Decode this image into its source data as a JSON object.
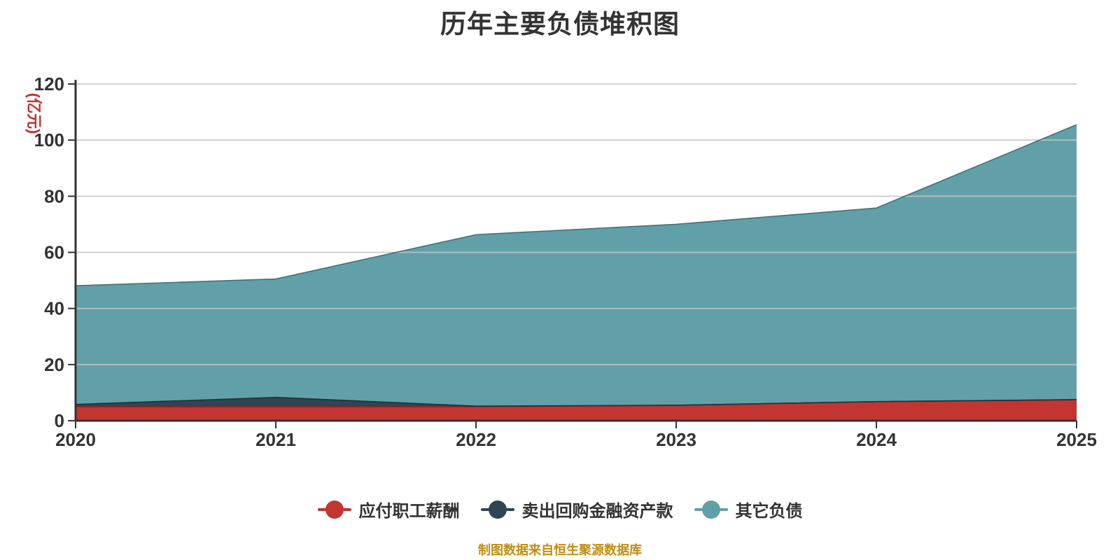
{
  "title": "历年主要负债堆积图",
  "y_axis": {
    "name": "(亿元)",
    "name_color": "#c23531",
    "tick_labels": [
      "0",
      "20",
      "40",
      "60",
      "80",
      "100",
      "120"
    ],
    "min": 0,
    "max": 120,
    "interval": 20
  },
  "x_axis": {
    "tick_labels": [
      "2020",
      "2021",
      "2022",
      "2023",
      "2024",
      "2025"
    ]
  },
  "legend": {
    "items": [
      {
        "label": "应付职工薪酬",
        "color": "#c23531"
      },
      {
        "label": "卖出回购金融资产款",
        "color": "#2f4554"
      },
      {
        "label": "其它负债",
        "color": "#61a0a8"
      }
    ]
  },
  "caption": {
    "text": "制图数据来自恒生聚源数据库",
    "color": "#bf8e11"
  },
  "colors": {
    "axis": "#333333",
    "grid": "#c4c4c4",
    "text": "#333333",
    "background": "#ffffff"
  },
  "chart_data": {
    "type": "area",
    "stacked": true,
    "categories": [
      "2020",
      "2021",
      "2022",
      "2023",
      "2024",
      "2025"
    ],
    "series": [
      {
        "name": "应付职工薪酬",
        "color": "#c23531",
        "values": [
          5.0,
          5.0,
          5.0,
          5.5,
          6.8,
          7.5
        ]
      },
      {
        "name": "卖出回购金融资产款",
        "color": "#2f4554",
        "values": [
          0.8,
          3.3,
          0.2,
          0.0,
          0.0,
          0.0
        ]
      },
      {
        "name": "其它负债",
        "color": "#61a0a8",
        "values": [
          42.3,
          42.2,
          61.1,
          64.5,
          69.0,
          98.0
        ]
      }
    ],
    "totals": [
      48.1,
      50.5,
      66.3,
      70.0,
      75.8,
      105.5
    ],
    "title": "历年主要负债堆积图",
    "xlabel": "",
    "ylabel": "(亿元)",
    "ylim": [
      0,
      120
    ],
    "grid": true,
    "legend_position": "bottom",
    "source_note": "制图数据来自恒生聚源数据库"
  }
}
